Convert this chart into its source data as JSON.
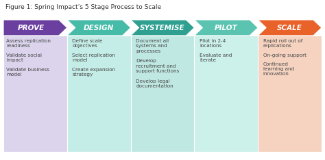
{
  "title": "Figure 1: Spring Impact’s 5 Stage Process to Scale",
  "title_fontsize": 6.5,
  "stages": [
    "PROVE",
    "DESIGN",
    "SYSTEMISE",
    "PILOT",
    "SCALE"
  ],
  "header_colors": [
    "#6B3FA0",
    "#45BBA8",
    "#2FA090",
    "#5BC4B0",
    "#E8622A"
  ],
  "body_colors": [
    "#DBD4EC",
    "#C5EDE7",
    "#C0E8E3",
    "#CCF0EA",
    "#F5D3C0"
  ],
  "bullet_points": [
    [
      "Assess replication\nreadiness",
      "Validate social\nimpact",
      "Validate business\nmodel"
    ],
    [
      "Define scale\nobjectives",
      "Select replication\nmodel",
      "Create expansion\nstrategy"
    ],
    [
      "Document all\nsystems and\nprocesses",
      "Develop\nrecruitment and\nsupport functions",
      "Develop legal\ndocumentation"
    ],
    [
      "Pilot in 2-4\nlocations",
      "Evaluate and\niterate"
    ],
    [
      "Rapid roll out of\nreplications",
      "On-going support",
      "Continued\nlearning and\ninnovation"
    ]
  ],
  "bg_color": "#FFFFFF",
  "text_color": "#444444",
  "header_text_color": "#FFFFFF",
  "bullet_fontsize": 5.2,
  "header_fontsize": 7.5
}
